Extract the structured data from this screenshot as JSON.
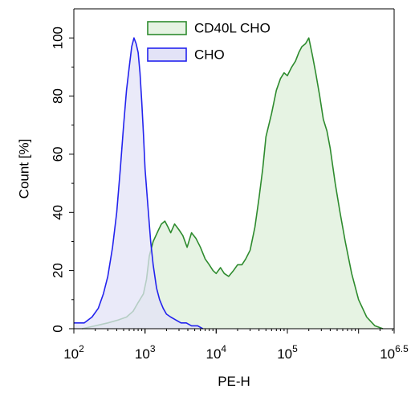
{
  "chart_data": {
    "type": "area",
    "title": "",
    "xlabel": "PE-H",
    "ylabel": "Count [%]",
    "x_scale": "log10",
    "xlim": [
      100,
      3162278
    ],
    "ylim": [
      0,
      110
    ],
    "x_ticks": [
      {
        "value": 100,
        "base": "10",
        "exp": "2"
      },
      {
        "value": 1000,
        "base": "10",
        "exp": "3"
      },
      {
        "value": 10000,
        "base": "10",
        "exp": "4"
      },
      {
        "value": 100000,
        "base": "10",
        "exp": "5"
      },
      {
        "value": 3162278,
        "base": "10",
        "exp": "6.5"
      }
    ],
    "y_ticks": [
      0,
      20,
      40,
      60,
      80,
      100
    ],
    "grid": false,
    "legend": "top-center",
    "series": [
      {
        "name": "CD40L CHO",
        "stroke": "#2e8b2e",
        "fill": "#e6f3e3",
        "x": [
          130,
          200,
          300,
          420,
          550,
          680,
          800,
          950,
          1050,
          1150,
          1300,
          1420,
          1550,
          1700,
          1900,
          2100,
          2300,
          2600,
          3000,
          3400,
          3900,
          4500,
          5200,
          6000,
          7000,
          8000,
          9000,
          10000,
          11500,
          13000,
          15000,
          17500,
          20000,
          23000,
          26000,
          30000,
          35000,
          40000,
          45000,
          50000,
          60000,
          70000,
          80000,
          90000,
          100000,
          115000,
          130000,
          145000,
          160000,
          180000,
          200000,
          225000,
          250000,
          285000,
          320000,
          360000,
          400000,
          470000,
          550000,
          650000,
          800000,
          1000000,
          1300000,
          1700000,
          2200000
        ],
        "values": [
          0,
          1,
          2,
          3,
          4,
          6,
          9,
          12,
          17,
          25,
          30,
          32,
          34,
          36,
          37,
          35,
          33,
          36,
          34,
          32,
          28,
          33,
          31,
          28,
          24,
          22,
          20,
          19,
          21,
          19,
          18,
          20,
          22,
          22,
          24,
          27,
          35,
          45,
          55,
          66,
          74,
          82,
          86,
          88,
          87,
          90,
          92,
          95,
          97,
          98,
          100,
          94,
          88,
          80,
          72,
          68,
          62,
          50,
          40,
          30,
          19,
          10,
          4,
          1,
          0
        ]
      },
      {
        "name": "CHO",
        "stroke": "#2323ee",
        "fill": "#e3e3f7",
        "x": [
          100,
          140,
          180,
          220,
          260,
          300,
          350,
          400,
          450,
          500,
          550,
          600,
          650,
          700,
          750,
          800,
          850,
          900,
          950,
          1000,
          1100,
          1200,
          1300,
          1450,
          1600,
          1800,
          2000,
          2300,
          2700,
          3200,
          3800,
          4500,
          5500,
          6500
        ],
        "values": [
          2,
          2,
          4,
          7,
          12,
          18,
          28,
          40,
          55,
          70,
          82,
          90,
          97,
          100,
          98,
          95,
          88,
          78,
          67,
          55,
          42,
          30,
          22,
          14,
          10,
          7,
          5,
          4,
          3,
          2,
          2,
          1,
          1,
          0
        ]
      }
    ]
  }
}
